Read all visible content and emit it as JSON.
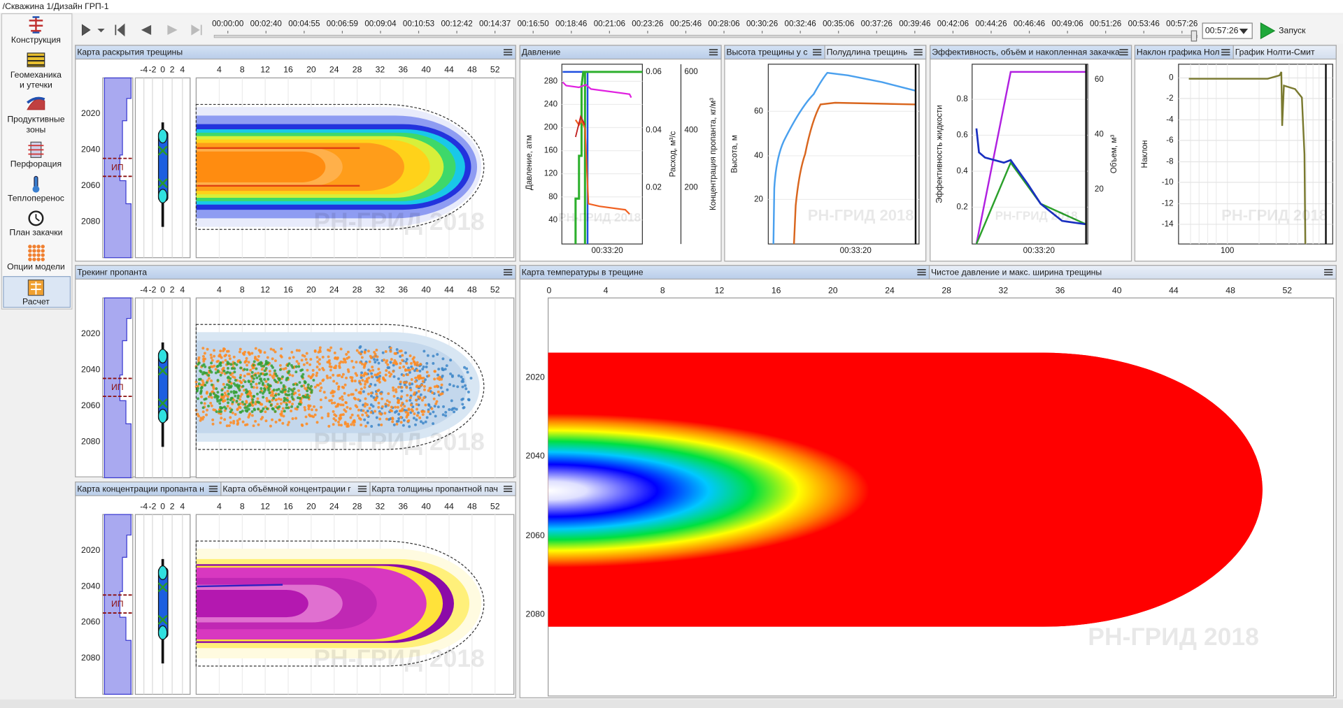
{
  "window": {
    "title": "/Скважина 1/Дизайн ГРП-1"
  },
  "sidebar": {
    "items": [
      [
        "Конструкция"
      ],
      [
        "Геомеханика",
        "и утечки"
      ],
      [
        "Продуктивные",
        "зоны"
      ],
      [
        "Перфорация"
      ],
      [
        "Теплоперенос"
      ],
      [
        "План закачки"
      ],
      [
        "Опции модели"
      ],
      [
        "Расчет"
      ]
    ]
  },
  "toolbar": {
    "timeline": [
      "00:00:00",
      "00:02:40",
      "00:04:55",
      "00:06:59",
      "00:09:04",
      "00:10:53",
      "00:12:42",
      "00:14:37",
      "00:16:50",
      "00:18:46",
      "00:21:06",
      "00:23:26",
      "00:25:46",
      "00:28:06",
      "00:30:26",
      "00:32:46",
      "00:35:06",
      "00:37:26",
      "00:39:46",
      "00:42:06",
      "00:44:26",
      "00:46:46",
      "00:49:06",
      "00:51:26",
      "00:53:46",
      "00:57:26"
    ],
    "current_time": "00:57:26",
    "run": "Запуск"
  },
  "panels": {
    "opening": {
      "tabs": [
        "Карта раскрытия трещины"
      ],
      "width_ticks": [
        "-4",
        "-2",
        "0",
        "2",
        "4"
      ],
      "length_ticks": [
        "4",
        "8",
        "12",
        "16",
        "20",
        "24",
        "28",
        "32",
        "36",
        "40",
        "44",
        "48",
        "52"
      ],
      "depth_ticks": [
        "2020",
        "2040",
        "2060",
        "2080"
      ],
      "zone_label": "ИП",
      "watermark": "РН-ГРИД 2018"
    },
    "tracking": {
      "tabs": [
        "Трекинг пропанта"
      ],
      "width_ticks": [
        "-4",
        "-2",
        "0",
        "2",
        "4"
      ],
      "length_ticks": [
        "4",
        "8",
        "12",
        "16",
        "20",
        "24",
        "28",
        "32",
        "36",
        "40",
        "44",
        "48",
        "52"
      ],
      "depth_ticks": [
        "2020",
        "2040",
        "2060",
        "2080"
      ],
      "zone_label": "ИП",
      "watermark": "РН-ГРИД 2018"
    },
    "concentration": {
      "tabs": [
        "Карта концентрации пропанта н",
        "Карта объёмной концентрации г",
        "Карта толщины пропантной пач"
      ],
      "width_ticks": [
        "-4",
        "-2",
        "0",
        "2",
        "4"
      ],
      "length_ticks": [
        "4",
        "8",
        "12",
        "16",
        "20",
        "24",
        "28",
        "32",
        "36",
        "40",
        "44",
        "48",
        "52"
      ],
      "depth_ticks": [
        "2020",
        "2040",
        "2060",
        "2080"
      ],
      "zone_label": "ИП",
      "watermark": "РН-ГРИД 2018"
    },
    "pressure": {
      "tabs": [
        "Давление"
      ],
      "left_ticks": [
        "280",
        "240",
        "200",
        "160",
        "120",
        "80",
        "40"
      ],
      "left_label": "Давление, атм",
      "mid_ticks": [
        "0.06",
        "0.04",
        "0.02"
      ],
      "mid_label": "Расход, м³/с",
      "right_ticks": [
        "600",
        "400",
        "200"
      ],
      "right_label": "Концентрация пропанта, кг/м³",
      "x_label": "00:33:20"
    },
    "height": {
      "tabs": [
        "Высота трещины у с",
        "Полудлина трещинь"
      ],
      "y_ticks": [
        "60",
        "40",
        "20"
      ],
      "y_label": "Высота, м",
      "x_label": "00:33:20"
    },
    "efficiency": {
      "tabs": [
        "Эффективность, объём и накопленная закачка"
      ],
      "y_ticks": [
        "0.8",
        "0.6",
        "0.4",
        "0.2"
      ],
      "y_label": "Эффективность жидкости",
      "y2_ticks": [
        "60",
        "40",
        "20"
      ],
      "y2_label": "Объем, м³",
      "x_label": "00:33:20"
    },
    "nolte": {
      "tabs": [
        "Наклон графика Нол",
        "График Нолти-Смит"
      ],
      "y_ticks": [
        "0",
        "-2",
        "-4",
        "-6",
        "-8",
        "-10",
        "-12",
        "-14"
      ],
      "y_label": "Наклон",
      "x_ticks": [
        "100"
      ]
    },
    "temperature": {
      "tabs": [
        "Карта температуры в трещине",
        "Чистое давление и макс. ширина трещины"
      ],
      "x_ticks": [
        "0",
        "4",
        "8",
        "12",
        "16",
        "20",
        "24",
        "28",
        "32",
        "36",
        "40",
        "44",
        "48",
        "52"
      ],
      "depth_ticks": [
        "2020",
        "2040",
        "2060",
        "2080"
      ],
      "watermark": "РН-ГРИД 2018"
    }
  }
}
